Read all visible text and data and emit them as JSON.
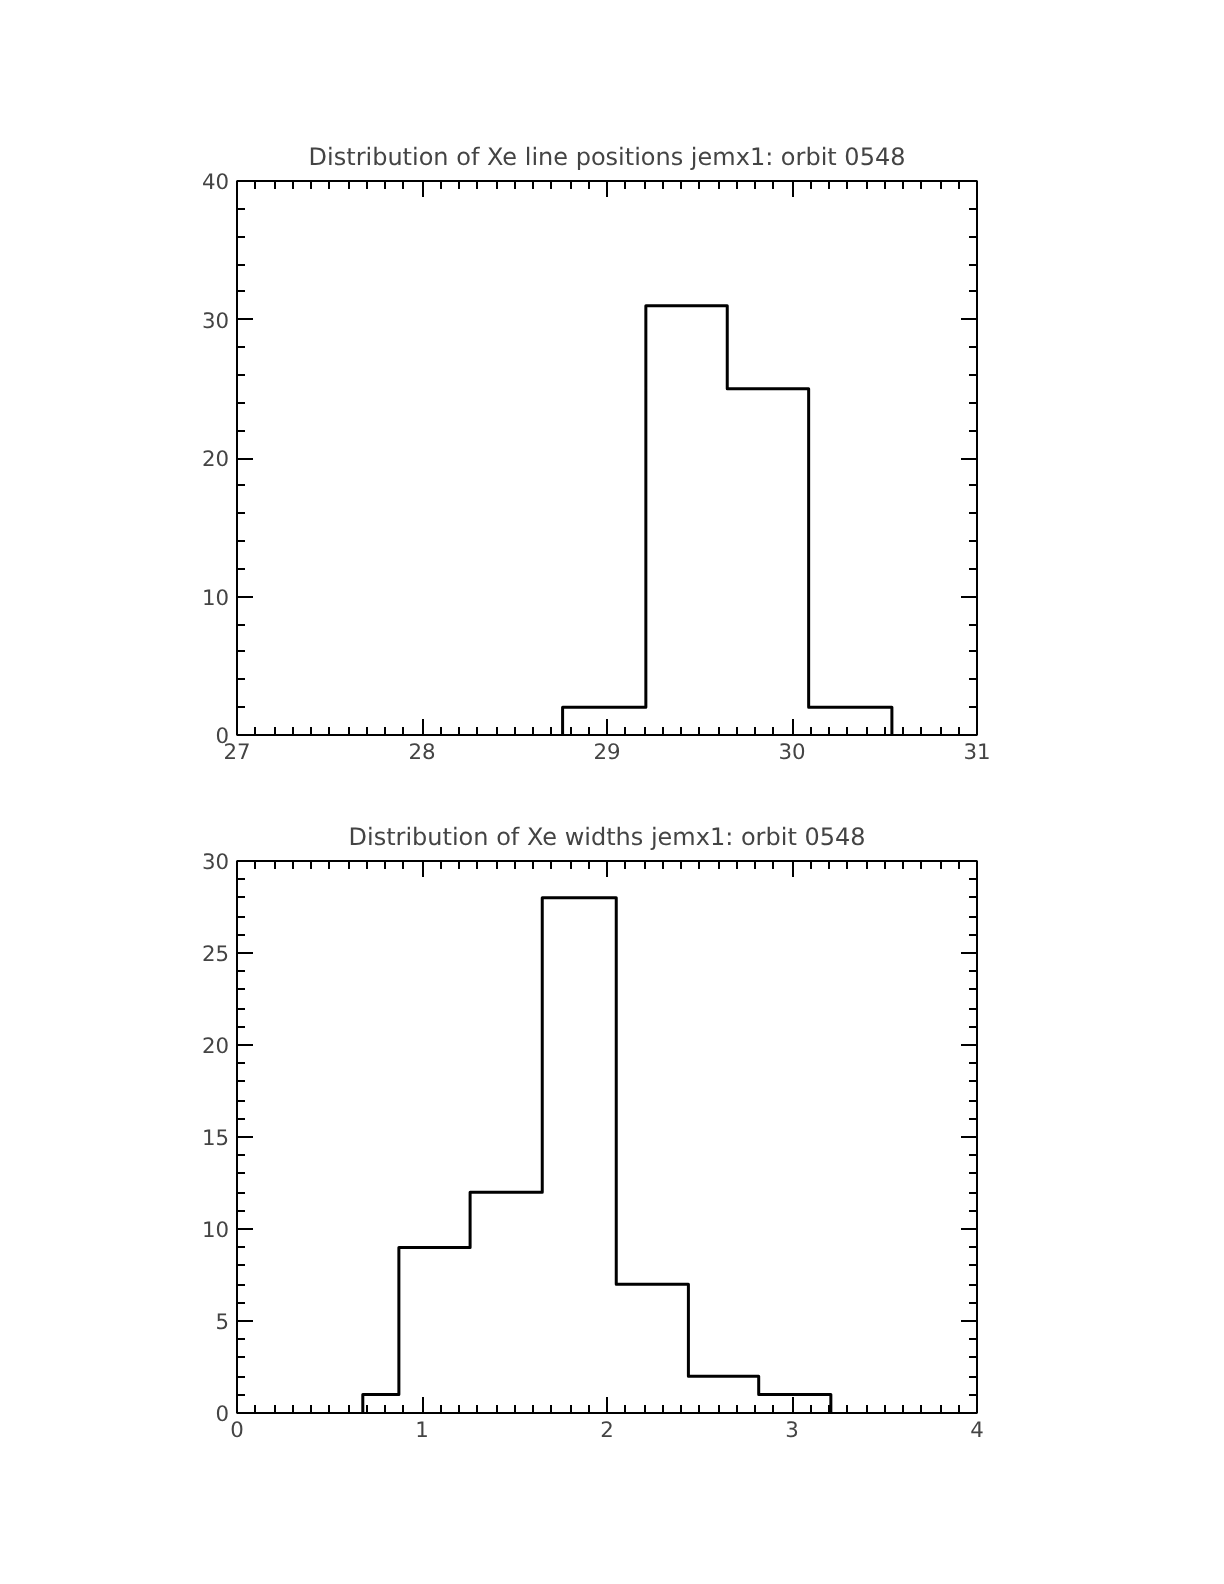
{
  "chart_data": [
    {
      "type": "histogram",
      "title": "Distribution of Xe line positions jemx1: orbit 0548",
      "bins": [
        28.76,
        29.21,
        29.65,
        30.09,
        30.54
      ],
      "values": [
        2,
        31,
        25,
        2
      ],
      "color": "#000000",
      "xlim": [
        27,
        31
      ],
      "ylim": [
        0,
        40
      ],
      "xticks": [
        27,
        28,
        29,
        30,
        31
      ],
      "yticks": [
        0,
        10,
        20,
        30,
        40
      ],
      "grid": false
    },
    {
      "type": "histogram",
      "title": "Distribution of Xe widths jemx1: orbit 0548",
      "bins": [
        0.68,
        0.875,
        1.26,
        1.65,
        2.05,
        2.44,
        2.82,
        3.21
      ],
      "values": [
        1,
        9,
        12,
        28,
        7,
        2,
        1
      ],
      "color": "#000000",
      "xlim": [
        0,
        4
      ],
      "ylim": [
        0,
        30
      ],
      "xticks": [
        0,
        1,
        2,
        3,
        4
      ],
      "yticks": [
        0,
        5,
        10,
        15,
        20,
        25,
        30
      ],
      "grid": false
    }
  ]
}
